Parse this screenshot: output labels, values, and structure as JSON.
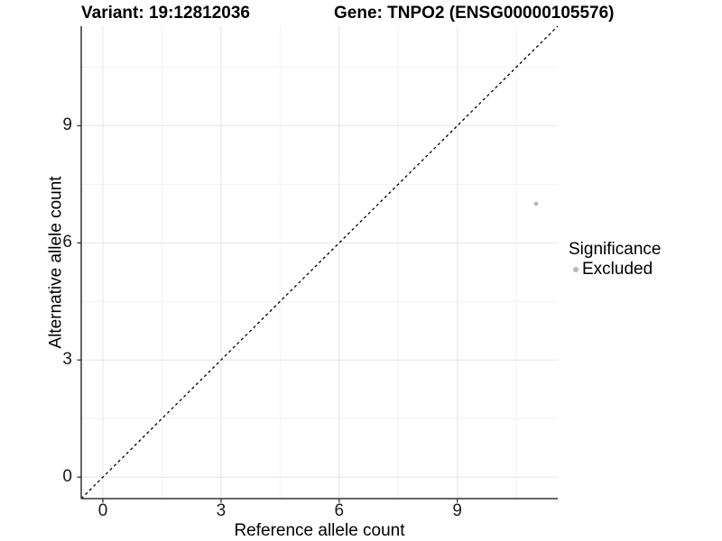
{
  "header": {
    "variant_title": "Variant: 19:12812036",
    "gene_title": "Gene: TNPO2 (ENSG00000105576)"
  },
  "chart_data": {
    "type": "scatter",
    "titles": {
      "left": "Variant: 19:12812036",
      "right": "Gene: TNPO2 (ENSG00000105576)"
    },
    "xlabel": "Reference allele count",
    "ylabel": "Alternative allele count",
    "xlim": [
      -0.55,
      11.55
    ],
    "ylim": [
      -0.55,
      11.55
    ],
    "x_ticks": [
      0,
      3,
      6,
      9
    ],
    "y_ticks": [
      0,
      3,
      6,
      9
    ],
    "x_minor_ticks": [
      1.5,
      4.5,
      7.5,
      10.5
    ],
    "y_minor_ticks": [
      1.5,
      4.5,
      7.5,
      10.5
    ],
    "grid": "major+minor",
    "points": [
      {
        "x": 11,
        "y": 7,
        "series": "Excluded",
        "color": "#b8b8b8"
      }
    ],
    "reference_line": {
      "type": "identity",
      "slope": 1,
      "intercept": 0,
      "style": "dashed",
      "color": "#000000"
    },
    "legend": {
      "title": "Significance",
      "position": "right",
      "items": [
        {
          "label": "Excluded",
          "color": "#b8b8b8",
          "marker": "dot"
        }
      ]
    },
    "colors": {
      "grid_major": "#e4e4e4",
      "grid_minor": "#f2f2f2",
      "axis_line": "#333333",
      "tick_mark": "#333333",
      "tick_text": "#1a1a1a",
      "point": "#b8b8b8"
    }
  }
}
